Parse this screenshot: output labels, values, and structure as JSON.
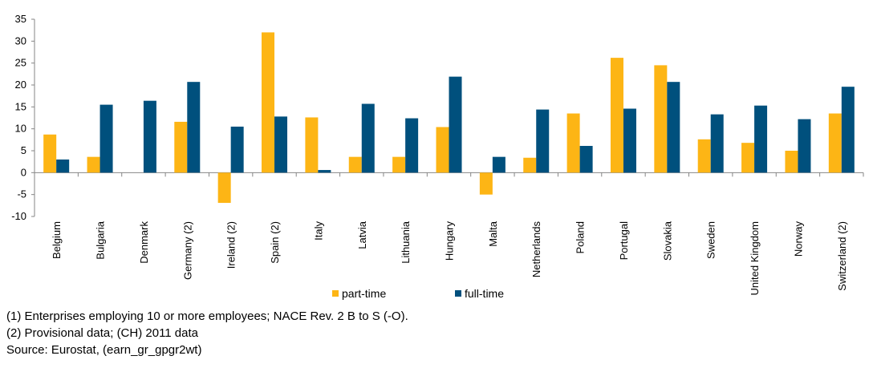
{
  "chart_data": {
    "type": "bar",
    "title": "",
    "xlabel": "",
    "ylabel": "",
    "ylim": [
      -10,
      35
    ],
    "yticks": [
      -10,
      -5,
      0,
      5,
      10,
      15,
      20,
      25,
      30,
      35
    ],
    "grid": false,
    "legend_position": "bottom-center",
    "categories": [
      "Belgium",
      "Bulgaria",
      "Denmark",
      "Germany (2)",
      "Ireland (2)",
      "Spain (2)",
      "Italy",
      "Latvia",
      "Lithuania",
      "Hungary",
      "Malta",
      "Netherlands",
      "Poland",
      "Portugal",
      "Slovakia",
      "Sweden",
      "United Kingdom",
      "Norway",
      "Switzerland (2)"
    ],
    "series": [
      {
        "name": "part-time",
        "color": "#FDB515",
        "values": [
          8.7,
          3.6,
          null,
          11.6,
          -6.9,
          32.0,
          12.6,
          3.6,
          3.6,
          10.4,
          -5.0,
          3.4,
          13.5,
          26.2,
          24.5,
          7.6,
          6.8,
          5.0,
          13.5
        ]
      },
      {
        "name": "full-time",
        "color": "#00507D",
        "values": [
          3.0,
          15.5,
          16.4,
          20.7,
          10.5,
          12.8,
          0.6,
          15.7,
          12.4,
          21.9,
          3.6,
          14.4,
          6.1,
          14.6,
          20.7,
          13.3,
          15.3,
          12.2,
          19.6
        ]
      }
    ]
  },
  "notes": [
    "(1) Enterprises employing 10 or more employees; NACE Rev. 2 B to S (-O).",
    "(2) Provisional data; (CH) 2011 data",
    "Source: Eurostat, (earn_gr_gpgr2wt)"
  ]
}
